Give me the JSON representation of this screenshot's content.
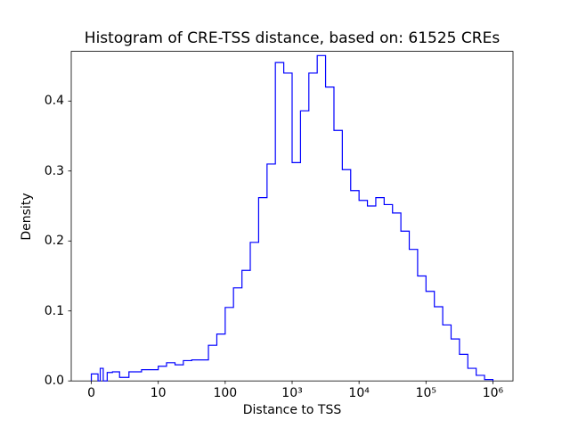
{
  "chart_data": {
    "type": "histogram",
    "histtype": "step",
    "title": "Histogram of CRE-TSS distance, based on: 61525 CREs",
    "xlabel": "Distance to TSS",
    "ylabel": "Density",
    "n_cres": 61525,
    "line_color": "#0000ff",
    "background_color": "#ffffff",
    "axis_color": "#000000",
    "x_scale": "symlog",
    "x_linthresh": 10,
    "grid": false,
    "legend": false,
    "x_tick_values": [
      0,
      10,
      100,
      1000,
      10000,
      100000,
      1000000
    ],
    "x_tick_labels": [
      "0",
      "10",
      "100",
      "10³",
      "10⁴",
      "10⁵",
      "10⁶"
    ],
    "y_tick_values": [
      0.0,
      0.1,
      0.2,
      0.3,
      0.4
    ],
    "y_tick_labels": [
      "0.0",
      "0.1",
      "0.2",
      "0.3",
      "0.4"
    ],
    "ylim": [
      0,
      0.471
    ],
    "xlim_transformed_margin": 0.3,
    "bin_edges": [
      0,
      1,
      1.33,
      1.78,
      2.37,
      3.16,
      4.22,
      5.62,
      7.5,
      10,
      13.3,
      17.8,
      23.7,
      31.6,
      42.2,
      56.2,
      75,
      100,
      133,
      178,
      237,
      316,
      422,
      562,
      750,
      1000,
      1334,
      1778,
      2371,
      3162,
      4217,
      5623,
      7499,
      10000,
      13335,
      17783,
      23714,
      31623,
      42170,
      56234,
      74989,
      100000,
      133352,
      177828,
      237137,
      316228,
      421697,
      562341,
      749894,
      1000000
    ],
    "densities": [
      0.01,
      0.0,
      0.018,
      0.0,
      0.012,
      0.013,
      0.005,
      0.013,
      0.016,
      0.021,
      0.026,
      0.023,
      0.029,
      0.03,
      0.03,
      0.051,
      0.067,
      0.105,
      0.133,
      0.158,
      0.198,
      0.262,
      0.31,
      0.455,
      0.44,
      0.312,
      0.386,
      0.44,
      0.465,
      0.42,
      0.358,
      0.302,
      0.272,
      0.258,
      0.25,
      0.262,
      0.252,
      0.24,
      0.214,
      0.188,
      0.15,
      0.128,
      0.106,
      0.08,
      0.06,
      0.038,
      0.018,
      0.008,
      0.002
    ]
  }
}
